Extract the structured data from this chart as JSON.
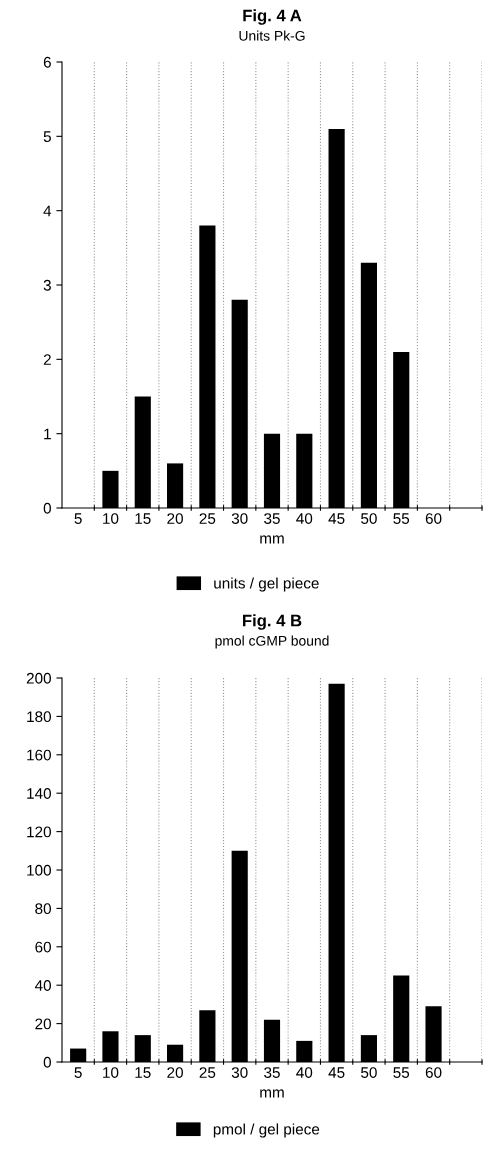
{
  "chart_data": [
    {
      "type": "bar",
      "title": "Fig. 4 A",
      "subtitle": "Units Pk-G",
      "xlabel": "mm",
      "categories": [
        "5",
        "10",
        "15",
        "20",
        "25",
        "30",
        "35",
        "40",
        "45",
        "50",
        "55",
        "60",
        null
      ],
      "series": [
        {
          "name": "units / gel piece",
          "color": "#000000",
          "values": [
            null,
            0.5,
            1.5,
            0.6,
            3.8,
            2.8,
            1,
            1,
            5.1,
            3.3,
            2.1,
            null,
            null
          ]
        }
      ],
      "ylim": [
        0,
        6
      ],
      "yticks": [
        0,
        1,
        2,
        3,
        4,
        5,
        6
      ],
      "grid": "x",
      "legend": "bottom"
    },
    {
      "type": "bar",
      "title": "Fig. 4 B",
      "subtitle": "pmol cGMP bound",
      "xlabel": "mm",
      "categories": [
        "5",
        "10",
        "15",
        "20",
        "25",
        "30",
        "35",
        "40",
        "45",
        "50",
        "55",
        "60",
        null
      ],
      "series": [
        {
          "name": "pmol / gel piece",
          "color": "#000000",
          "values": [
            7,
            16,
            14,
            9,
            27,
            110,
            22,
            11,
            197,
            14,
            45,
            29,
            null
          ]
        }
      ],
      "ylim": [
        0,
        200
      ],
      "yticks": [
        0,
        20,
        40,
        60,
        80,
        100,
        120,
        140,
        160,
        180,
        200
      ],
      "grid": "x",
      "legend": "bottom"
    }
  ]
}
